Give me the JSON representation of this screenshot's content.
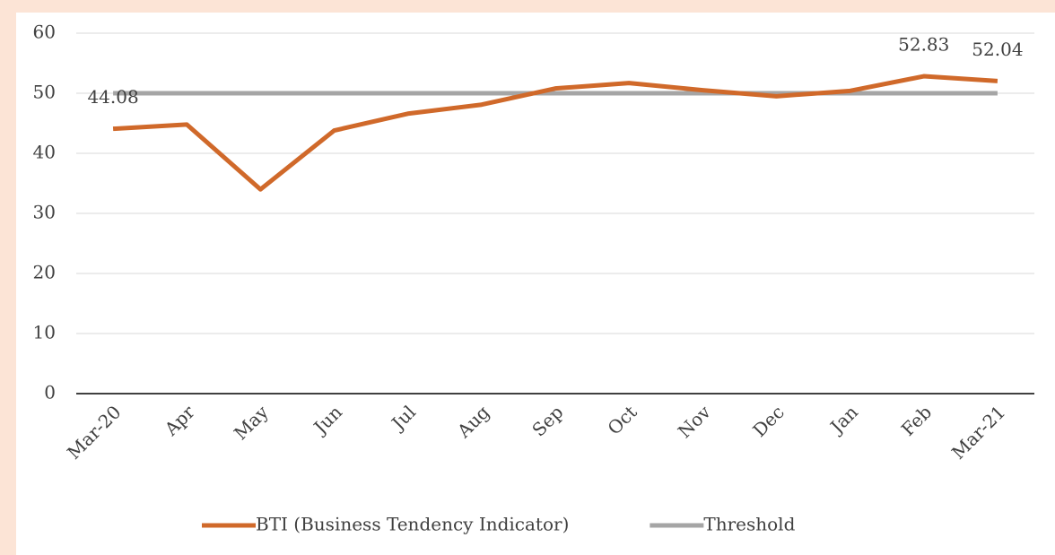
{
  "chart_data": {
    "type": "line",
    "categories": [
      "Mar-20",
      "Apr",
      "May",
      "Jun",
      "Jul",
      "Aug",
      "Sep",
      "Oct",
      "Nov",
      "Dec",
      "Jan",
      "Feb",
      "Mar-21"
    ],
    "series": [
      {
        "name": "BTI (Business Tendency Indicator)",
        "color": "#d0692a",
        "values": [
          44.08,
          44.8,
          34.0,
          43.8,
          46.6,
          48.1,
          50.8,
          51.7,
          50.5,
          49.5,
          50.4,
          52.83,
          52.04
        ],
        "value_labels": [
          "44.08",
          null,
          null,
          null,
          null,
          null,
          null,
          null,
          null,
          null,
          null,
          "52.83",
          "52.04"
        ]
      },
      {
        "name": "Threshold",
        "color": "#a5a5a5",
        "values": [
          50,
          50,
          50,
          50,
          50,
          50,
          50,
          50,
          50,
          50,
          50,
          50,
          50
        ]
      }
    ],
    "ylim": [
      0,
      60
    ],
    "yticks": [
      0,
      10,
      20,
      30,
      40,
      50,
      60
    ],
    "grid": true,
    "legend": "bottom"
  }
}
